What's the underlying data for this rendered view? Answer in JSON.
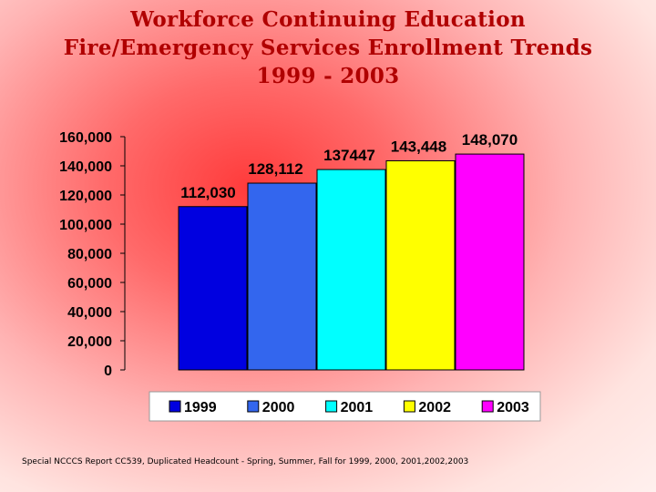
{
  "title_lines": [
    "Workforce Continuing Education",
    "Fire/Emergency Services Enrollment Trends",
    "1999 - 2003"
  ],
  "footer": "Special NCCCS Report CC539, Duplicated Headcount - Spring, Summer, Fall for 1999, 2000, 2001,2002,2003",
  "chart_data": {
    "type": "bar",
    "categories": [
      "1999",
      "2000",
      "2001",
      "2002",
      "2003"
    ],
    "values": [
      112030,
      128112,
      137447,
      143448,
      148070
    ],
    "data_labels": [
      "112,030",
      "128,112",
      "137447",
      "143,448",
      "148,070"
    ],
    "colors": [
      "#0000e0",
      "#3366ee",
      "#00ffff",
      "#ffff00",
      "#ff00ff"
    ],
    "ylim": [
      0,
      160000
    ],
    "yticks": [
      "0",
      "20,000",
      "40,000",
      "60,000",
      "80,000",
      "100,000",
      "120,000",
      "140,000",
      "160,000"
    ],
    "ytick_values": [
      0,
      20000,
      40000,
      60000,
      80000,
      100000,
      120000,
      140000,
      160000
    ],
    "legend": [
      "1999",
      "2000",
      "2001",
      "2002",
      "2003"
    ],
    "legend_position": "bottom",
    "grid": false
  }
}
